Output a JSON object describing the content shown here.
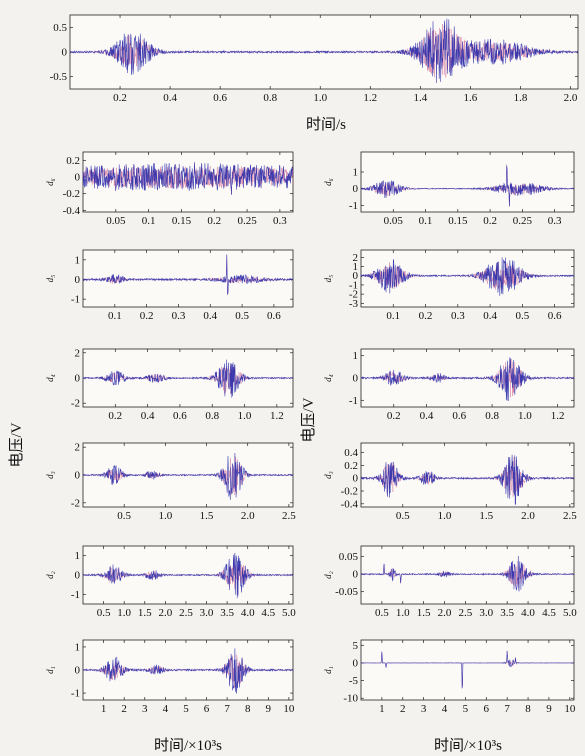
{
  "colors": {
    "signal": "#2a2aa8",
    "signal_overlay": "#c0306a",
    "axis": "#222222",
    "background": "#f4f2ee"
  },
  "labels": {
    "top_xlabel": "时间/s",
    "left_ylabel": "电压/V",
    "right_ylabel": "电压/V",
    "left_xlabel": "时间/×10³s",
    "right_xlabel": "时间/×10³s"
  },
  "chart_data": [
    {
      "type": "line",
      "name": "top",
      "ylabel": "",
      "xlim": [
        0,
        2.03
      ],
      "ylim": [
        -0.75,
        0.75
      ],
      "xticks": [
        0.2,
        0.4,
        0.6,
        0.8,
        1.0,
        1.2,
        1.4,
        1.6,
        1.8,
        2.0
      ],
      "xticklabels": [
        "0.2",
        "0.4",
        "0.6",
        "0.8",
        "1.0",
        "1.2",
        "1.4",
        "1.6",
        "1.8",
        "2.0"
      ],
      "yticks": [
        0.5,
        0,
        -0.5
      ],
      "yticklabels": [
        "0.5",
        "0",
        "-0.5"
      ],
      "bursts": [
        [
          0.25,
          0.05,
          0.45
        ],
        [
          1.48,
          0.06,
          0.7
        ],
        [
          1.7,
          0.1,
          0.25
        ]
      ],
      "noise": 0.02,
      "spikes": []
    },
    {
      "type": "line",
      "name": "L1",
      "ylabel": "d₆",
      "xlim": [
        0,
        0.32
      ],
      "ylim": [
        -0.42,
        0.3
      ],
      "xticks": [
        0.05,
        0.1,
        0.15,
        0.2,
        0.25,
        0.3
      ],
      "xticklabels": [
        "0.05",
        "0.1",
        "0.15",
        "0.2",
        "0.25",
        "0.3"
      ],
      "yticks": [
        0.2,
        0,
        -0.2,
        -0.4
      ],
      "yticklabels": [
        "0.2",
        "0",
        "-0.2",
        "-0.4"
      ],
      "bursts": [
        [
          0.16,
          0.2,
          0.13
        ]
      ],
      "noise": 0.04,
      "spikes": [
        [
          0.226,
          -0.25
        ],
        [
          0.05,
          -0.2
        ],
        [
          0.17,
          0.2
        ]
      ]
    },
    {
      "type": "line",
      "name": "R1",
      "ylabel": "d₆",
      "xlim": [
        0,
        0.33
      ],
      "ylim": [
        -1.4,
        2.2
      ],
      "xticks": [
        0.05,
        0.1,
        0.15,
        0.2,
        0.25,
        0.3
      ],
      "xticklabels": [
        "0.05",
        "0.1",
        "0.15",
        "0.2",
        "0.25",
        "0.3"
      ],
      "yticks": [
        1,
        0,
        -1
      ],
      "yticklabels": [
        "1",
        "0",
        "-1"
      ],
      "bursts": [
        [
          0.04,
          0.015,
          0.55
        ],
        [
          0.245,
          0.025,
          0.45
        ]
      ],
      "noise": 0.03,
      "spikes": [
        [
          0.226,
          2.0
        ],
        [
          0.23,
          -1.2
        ]
      ]
    },
    {
      "type": "line",
      "name": "L2",
      "ylabel": "d₅",
      "xlim": [
        0,
        0.66
      ],
      "ylim": [
        -1.4,
        1.5
      ],
      "xticks": [
        0.1,
        0.2,
        0.3,
        0.4,
        0.5,
        0.6
      ],
      "xticklabels": [
        "0.1",
        "0.2",
        "0.3",
        "0.4",
        "0.5",
        "0.6"
      ],
      "yticks": [
        1,
        0,
        -1
      ],
      "yticklabels": [
        "1",
        "0",
        "-1"
      ],
      "bursts": [
        [
          0.1,
          0.02,
          0.25
        ],
        [
          0.5,
          0.05,
          0.2
        ]
      ],
      "noise": 0.05,
      "spikes": [
        [
          0.452,
          1.3
        ],
        [
          0.455,
          -1.1
        ]
      ]
    },
    {
      "type": "line",
      "name": "R2",
      "ylabel": "d₅",
      "xlim": [
        0,
        0.66
      ],
      "ylim": [
        -3.4,
        2.8
      ],
      "xticks": [
        0.1,
        0.2,
        0.3,
        0.4,
        0.5,
        0.6
      ],
      "xticklabels": [
        "0.1",
        "0.2",
        "0.3",
        "0.4",
        "0.5",
        "0.6"
      ],
      "yticks": [
        2,
        1,
        0,
        -1,
        -2,
        -3
      ],
      "yticklabels": [
        "2",
        "1",
        "0",
        "-1",
        "-2",
        "-3"
      ],
      "bursts": [
        [
          0.09,
          0.03,
          1.9
        ],
        [
          0.44,
          0.04,
          2.2
        ]
      ],
      "noise": 0.08,
      "spikes": []
    },
    {
      "type": "line",
      "name": "L3",
      "ylabel": "d₄",
      "xlim": [
        0,
        1.3
      ],
      "ylim": [
        -2.3,
        2.3
      ],
      "xticks": [
        0.2,
        0.4,
        0.6,
        0.8,
        1.0,
        1.2
      ],
      "xticklabels": [
        "0.2",
        "0.4",
        "0.6",
        "0.8",
        "1.0",
        "1.2"
      ],
      "yticks": [
        2,
        0,
        -2
      ],
      "yticklabels": [
        "2",
        "0",
        "-2"
      ],
      "bursts": [
        [
          0.2,
          0.04,
          0.6
        ],
        [
          0.45,
          0.04,
          0.35
        ],
        [
          0.9,
          0.05,
          1.7
        ]
      ],
      "noise": 0.06,
      "spikes": []
    },
    {
      "type": "line",
      "name": "R3",
      "ylabel": "d₄",
      "xlim": [
        0,
        1.3
      ],
      "ylim": [
        -1.3,
        1.3
      ],
      "xticks": [
        0.2,
        0.4,
        0.6,
        0.8,
        1.0,
        1.2
      ],
      "xticklabels": [
        "0.2",
        "0.4",
        "0.6",
        "0.8",
        "1.0",
        "1.2"
      ],
      "yticks": [
        1,
        0,
        -1
      ],
      "yticklabels": [
        "1",
        "0",
        "-1"
      ],
      "bursts": [
        [
          0.2,
          0.04,
          0.35
        ],
        [
          0.47,
          0.03,
          0.2
        ],
        [
          0.91,
          0.05,
          1.05
        ]
      ],
      "noise": 0.04,
      "spikes": []
    },
    {
      "type": "line",
      "name": "L4",
      "ylabel": "d₃",
      "xlim": [
        0,
        2.55
      ],
      "ylim": [
        -2.3,
        2.3
      ],
      "xticks": [
        0.5,
        1.0,
        1.5,
        2.0,
        2.5
      ],
      "xticklabels": [
        "0.5",
        "1.0",
        "1.5",
        "2.0",
        "2.5"
      ],
      "yticks": [
        2,
        0,
        -2
      ],
      "yticklabels": [
        "2",
        "0",
        "-2"
      ],
      "bursts": [
        [
          0.38,
          0.07,
          0.7
        ],
        [
          0.85,
          0.06,
          0.3
        ],
        [
          1.82,
          0.08,
          1.9
        ]
      ],
      "noise": 0.05,
      "spikes": []
    },
    {
      "type": "line",
      "name": "R4",
      "ylabel": "d₃",
      "xlim": [
        0,
        2.55
      ],
      "ylim": [
        -0.45,
        0.55
      ],
      "xticks": [
        0.5,
        1.0,
        1.5,
        2.0,
        2.5
      ],
      "xticklabels": [
        "0.5",
        "1.0",
        "1.5",
        "2.0",
        "2.5"
      ],
      "yticks": [
        0.4,
        0.2,
        0,
        -0.2,
        -0.4
      ],
      "yticklabels": [
        "0.4",
        "0.2",
        "0",
        "-0.2",
        "-0.4"
      ],
      "bursts": [
        [
          0.35,
          0.07,
          0.32
        ],
        [
          0.8,
          0.06,
          0.12
        ],
        [
          1.82,
          0.08,
          0.42
        ]
      ],
      "noise": 0.015,
      "spikes": []
    },
    {
      "type": "line",
      "name": "L5",
      "ylabel": "d₂",
      "xlim": [
        0,
        5.1
      ],
      "ylim": [
        -1.5,
        1.5
      ],
      "xticks": [
        0.5,
        1.0,
        1.5,
        2.0,
        2.5,
        3.0,
        3.5,
        4.0,
        4.5,
        5.0
      ],
      "xticklabels": [
        "0.5",
        "1.0",
        "1.5",
        "2.0",
        "2.5",
        "3.0",
        "3.5",
        "4.0",
        "4.5",
        "5.0"
      ],
      "yticks": [
        1,
        0,
        -1
      ],
      "yticklabels": [
        "1",
        "0",
        "-1"
      ],
      "bursts": [
        [
          0.75,
          0.15,
          0.55
        ],
        [
          1.7,
          0.12,
          0.25
        ],
        [
          3.7,
          0.17,
          1.3
        ]
      ],
      "noise": 0.04,
      "spikes": []
    },
    {
      "type": "line",
      "name": "R5",
      "ylabel": "d₂",
      "xlim": [
        0,
        5.1
      ],
      "ylim": [
        -0.085,
        0.08
      ],
      "xticks": [
        0.5,
        1.0,
        1.5,
        2.0,
        2.5,
        3.0,
        3.5,
        4.0,
        4.5,
        5.0
      ],
      "xticklabels": [
        "0.5",
        "1.0",
        "1.5",
        "2.0",
        "2.5",
        "3.0",
        "3.5",
        "4.0",
        "4.5",
        "5.0"
      ],
      "yticks": [
        0.05,
        0,
        -0.05
      ],
      "yticklabels": [
        "0.05",
        "0",
        "-0.05"
      ],
      "bursts": [
        [
          0.75,
          0.05,
          0.02
        ],
        [
          2.0,
          0.1,
          0.008
        ],
        [
          3.75,
          0.15,
          0.055
        ]
      ],
      "noise": 0.002,
      "spikes": [
        [
          0.55,
          0.035
        ],
        [
          0.95,
          -0.03
        ]
      ]
    },
    {
      "type": "line",
      "name": "L6",
      "ylabel": "d₁",
      "xlim": [
        0,
        10.2
      ],
      "ylim": [
        -1.3,
        1.3
      ],
      "xticks": [
        1,
        2,
        3,
        4,
        5,
        6,
        7,
        8,
        9,
        10
      ],
      "xticklabels": [
        "1",
        "2",
        "3",
        "4",
        "5",
        "6",
        "7",
        "8",
        "9",
        "10"
      ],
      "yticks": [
        1,
        0,
        -1
      ],
      "yticklabels": [
        "1",
        "0",
        "-1"
      ],
      "bursts": [
        [
          1.5,
          0.3,
          0.6
        ],
        [
          3.6,
          0.25,
          0.2
        ],
        [
          7.4,
          0.3,
          1.05
        ]
      ],
      "noise": 0.04,
      "spikes": []
    },
    {
      "type": "line",
      "name": "R6",
      "ylabel": "d₁",
      "xlim": [
        0,
        10.2
      ],
      "ylim": [
        -10.5,
        6.5
      ],
      "xticks": [
        1,
        2,
        3,
        4,
        5,
        6,
        7,
        8,
        9,
        10
      ],
      "xticklabels": [
        "1",
        "2",
        "3",
        "4",
        "5",
        "6",
        "7",
        "8",
        "9",
        "10"
      ],
      "yticks": [
        5,
        0,
        -5,
        -10
      ],
      "yticklabels": [
        "5",
        "0",
        "-5",
        "-10"
      ],
      "bursts": [
        [
          7.2,
          0.15,
          1.2
        ]
      ],
      "noise": 0.05,
      "spikes": [
        [
          1.0,
          4.0
        ],
        [
          1.2,
          -1.5
        ],
        [
          4.85,
          -10.0
        ],
        [
          7.0,
          3.8
        ],
        [
          7.4,
          1.5
        ]
      ]
    }
  ]
}
